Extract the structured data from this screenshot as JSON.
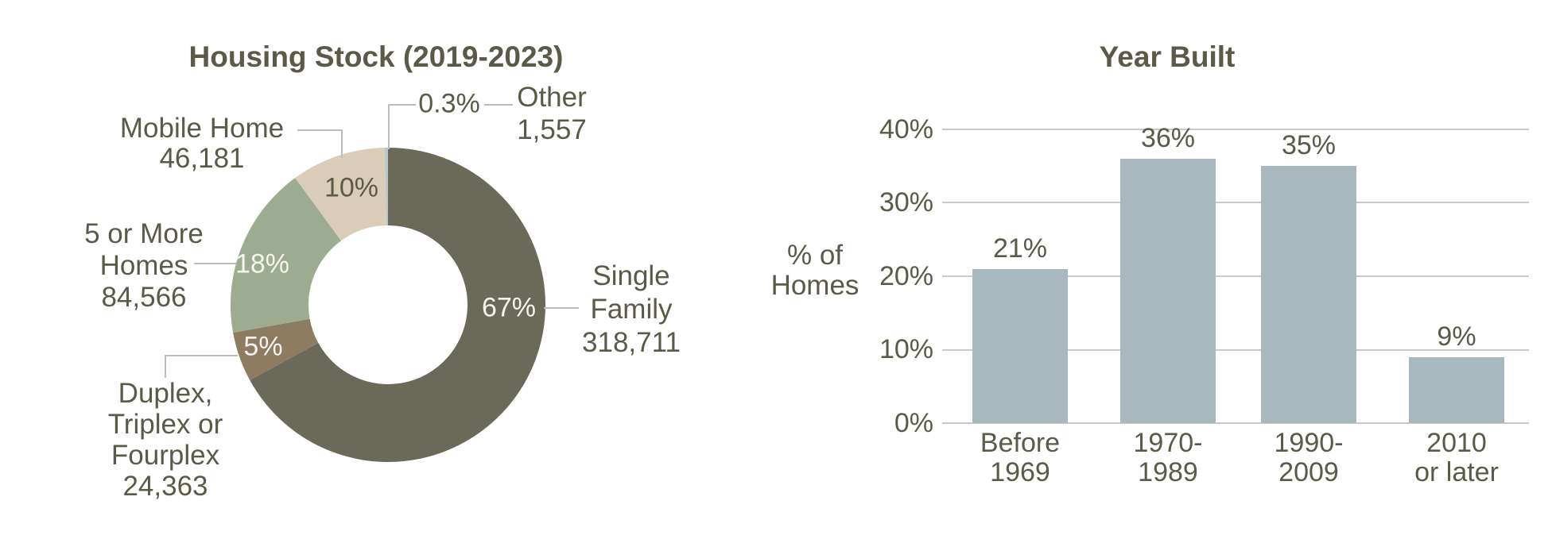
{
  "page": {
    "background": "#ffffff",
    "text_color": "#5b5947",
    "leader_line_color": "#bcbcbc"
  },
  "chart_data": [
    {
      "type": "pie",
      "subtype": "donut",
      "title": "Housing Stock (2019-2023)",
      "labels": [
        "Single Family",
        "Duplex, Triplex or Fourplex",
        "5 or More Homes",
        "Mobile Home",
        "Other"
      ],
      "values": [
        318711,
        24363,
        84566,
        46181,
        1557
      ],
      "value_labels": [
        "318,711",
        "24,363",
        "84,566",
        "46,181",
        "1,557"
      ],
      "pct_labels": [
        "67%",
        "5%",
        "18%",
        "10%",
        "0.3%"
      ],
      "colors": [
        "#6b6a5a",
        "#8d7c5f",
        "#9dab90",
        "#dacdb8",
        "#b9c6cb"
      ],
      "start_angle": "12 o'clock, clockwise",
      "hole_ratio": 0.51,
      "legend": "none, direct callout labels",
      "callouts": {
        "single_family": [
          "Single",
          "Family",
          "318,711"
        ],
        "duplex": [
          "Duplex,",
          "Triplex or",
          "Fourplex",
          "24,363"
        ],
        "five_plus": [
          "5 or More",
          "Homes",
          "84,566"
        ],
        "mobile": [
          "Mobile Home",
          "46,181"
        ],
        "other": [
          "Other",
          "1,557"
        ]
      }
    },
    {
      "type": "bar",
      "title": "Year Built",
      "categories": [
        "Before 1969",
        "1970-1989",
        "1990-2009",
        "2010 or later"
      ],
      "category_lines": [
        [
          "Before",
          "1969"
        ],
        [
          "1970-",
          "1989"
        ],
        [
          "1990-",
          "2009"
        ],
        [
          "2010",
          "or later"
        ]
      ],
      "values": [
        21,
        36,
        35,
        9
      ],
      "value_labels": [
        "21%",
        "36%",
        "35%",
        "9%"
      ],
      "ylabel": "% of Homes",
      "ylabel_lines": [
        "% of",
        "Homes"
      ],
      "ytick_labels": [
        "40%",
        "30%",
        "20%",
        "10%",
        "0%"
      ],
      "ylim": [
        0,
        40
      ],
      "grid": "horizontal gridlines at each 10%",
      "bar_color": "#a9b7be",
      "gridline_color": "#c8c8c8",
      "legend": "none"
    }
  ]
}
